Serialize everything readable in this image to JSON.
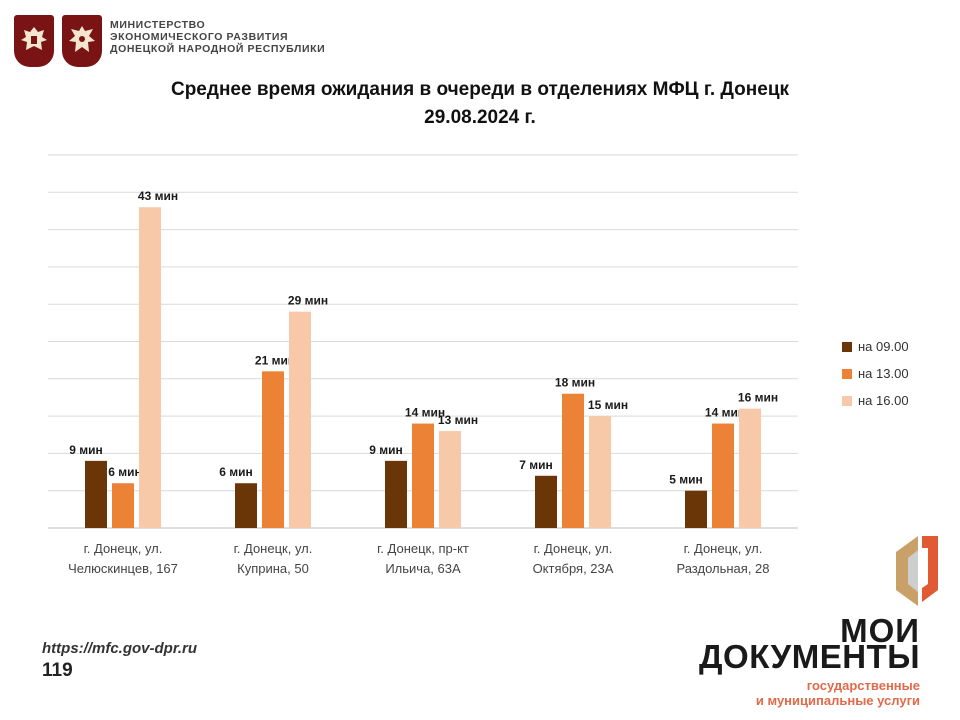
{
  "header": {
    "ministry_lines": [
      "МИНИСТЕРСТВО",
      "ЭКОНОМИЧЕСКОГО РАЗВИТИЯ",
      "ДОНЕЦКОЙ НАРОДНОЙ РЕСПУБЛИКИ"
    ]
  },
  "footer": {
    "site": "https://mfc.gov-dpr.ru",
    "page_number": "119",
    "brand_line1": "МОИ",
    "brand_line2": "ДОКУМЕНТЫ",
    "brand_line3": "государственные",
    "brand_line4": "и муниципальные услуги"
  },
  "colors": {
    "series1": "#6a3507",
    "series2": "#ec8236",
    "series3": "#f7c9a8",
    "emblem": "#7a1414",
    "brand_accent": "#e06a4a"
  },
  "chart_data": {
    "type": "bar",
    "title_line1": "Среднее время ожидания в очереди в отделениях МФЦ г. Донецк",
    "title_line2": "29.08.2024 г.",
    "categories": [
      [
        "г. Донецк, ул.",
        "Челюскинцев, 167"
      ],
      [
        "г. Донецк, ул.",
        "Куприна, 50"
      ],
      [
        "г. Донецк, пр-кт",
        "Ильича, 63А"
      ],
      [
        "г. Донецк, ул.",
        "Октября, 23А"
      ],
      [
        "г. Донецк, ул.",
        "Раздольная, 28"
      ]
    ],
    "series": [
      {
        "name": "на 09.00",
        "values": [
          9,
          6,
          9,
          7,
          5
        ]
      },
      {
        "name": "на 13.00",
        "values": [
          6,
          21,
          14,
          18,
          14
        ]
      },
      {
        "name": "на 16.00",
        "values": [
          43,
          29,
          13,
          15,
          16
        ]
      }
    ],
    "value_suffix": " мин",
    "ylim": [
      0,
      50
    ],
    "grid": true,
    "legend_position": "right"
  }
}
